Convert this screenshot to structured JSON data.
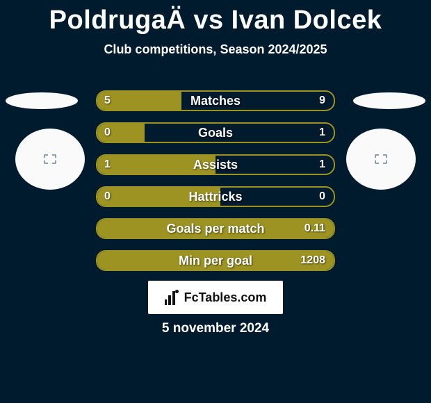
{
  "background_color": "#001a2e",
  "text_color": "#ffffff",
  "title": "PoldrugaÄ vs Ivan Dolcek",
  "subtitle": "Club competitions, Season 2024/2025",
  "date": "5 november 2024",
  "logo_text": "FcTables.com",
  "avatars": {
    "oval_color": "#fafafa",
    "circle_color": "#fafafa",
    "placeholder_border_color": "#8aa0b2"
  },
  "stats": [
    {
      "label": "Matches",
      "left_value": "5",
      "right_value": "9",
      "fill_percent": 35.7,
      "fill_color": "#9c9323",
      "border_color": "#9c9323"
    },
    {
      "label": "Goals",
      "left_value": "0",
      "right_value": "1",
      "fill_percent": 20,
      "fill_color": "#9c9323",
      "border_color": "#9c9323"
    },
    {
      "label": "Assists",
      "left_value": "1",
      "right_value": "1",
      "fill_percent": 50,
      "fill_color": "#9c9323",
      "border_color": "#9c9323"
    },
    {
      "label": "Hattricks",
      "left_value": "0",
      "right_value": "0",
      "fill_percent": 52,
      "fill_color": "#9c9323",
      "border_color": "#9c9323"
    },
    {
      "label": "Goals per match",
      "left_value": "",
      "right_value": "0.11",
      "fill_percent": 100,
      "fill_color": "#9c9323",
      "border_color": "#9c9323"
    },
    {
      "label": "Min per goal",
      "left_value": "",
      "right_value": "1208",
      "fill_percent": 100,
      "fill_color": "#9c9323",
      "border_color": "#9c9323"
    }
  ]
}
